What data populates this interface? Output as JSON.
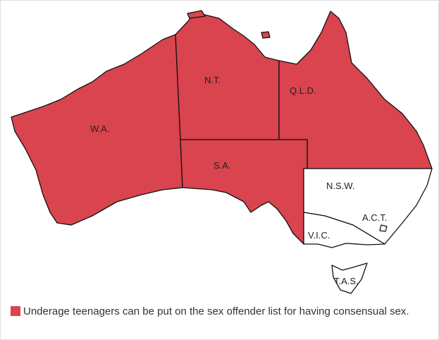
{
  "map": {
    "highlight_color": "#d9444e",
    "other_color": "#ffffff",
    "regions": [
      {
        "id": "wa",
        "label": "W.A.",
        "highlighted": true
      },
      {
        "id": "nt",
        "label": "N.T.",
        "highlighted": true
      },
      {
        "id": "qld",
        "label": "Q.L.D.",
        "highlighted": true
      },
      {
        "id": "sa",
        "label": "S.A.",
        "highlighted": true
      },
      {
        "id": "nsw",
        "label": "N.S.W.",
        "highlighted": false
      },
      {
        "id": "act",
        "label": "A.C.T.",
        "highlighted": false
      },
      {
        "id": "vic",
        "label": "V.I.C.",
        "highlighted": false
      },
      {
        "id": "tas",
        "label": "T.A.S.",
        "highlighted": false
      }
    ]
  },
  "legend": {
    "text": "Underage teenagers can be put on the sex offender list for having consensual sex."
  }
}
